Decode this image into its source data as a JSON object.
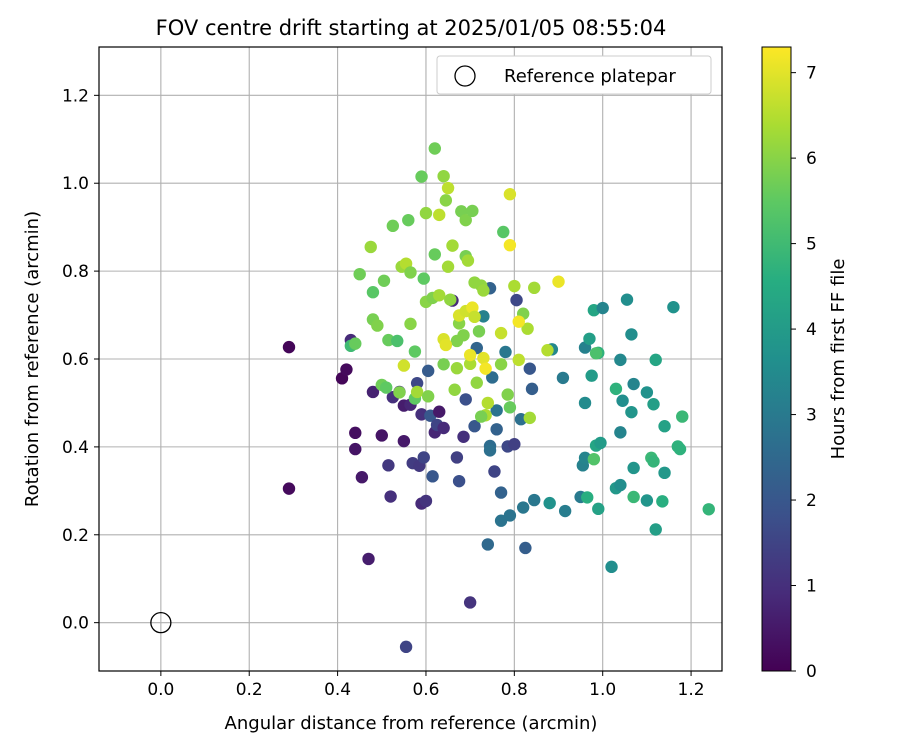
{
  "chart_data": {
    "type": "scatter",
    "title": "FOV centre drift starting at 2025/01/05 08:55:04",
    "xlabel": "Angular distance from reference (arcmin)",
    "ylabel": "Rotation from reference (arcmin)",
    "xlim": [
      -0.14,
      1.27
    ],
    "ylim": [
      -0.11,
      1.31
    ],
    "xticks": [
      0.0,
      0.2,
      0.4,
      0.6,
      0.8,
      1.0,
      1.2
    ],
    "yticks": [
      0.0,
      0.2,
      0.4,
      0.6,
      0.8,
      1.0,
      1.2
    ],
    "xtick_labels": [
      "0.0",
      "0.2",
      "0.4",
      "0.6",
      "0.8",
      "1.0",
      "1.2"
    ],
    "ytick_labels": [
      "0.0",
      "0.2",
      "0.4",
      "0.6",
      "0.8",
      "1.0",
      "1.2"
    ],
    "grid": true,
    "legend": {
      "position": "top-right",
      "label": "Reference platepar"
    },
    "reference_point": {
      "x": 0.0,
      "y": 0.0
    },
    "colorbar": {
      "label": "Hours from first FF file",
      "min": 0,
      "max": 7.3,
      "ticks": [
        0,
        1,
        2,
        3,
        4,
        5,
        6,
        7
      ],
      "tick_labels": [
        "0",
        "1",
        "2",
        "3",
        "4",
        "5",
        "6",
        "7"
      ],
      "colormap": "viridis"
    },
    "points": [
      {
        "x": 0.29,
        "y": 0.627,
        "c": 0.1
      },
      {
        "x": 0.29,
        "y": 0.305,
        "c": 0.2
      },
      {
        "x": 0.41,
        "y": 0.556,
        "c": 0.1
      },
      {
        "x": 0.42,
        "y": 0.576,
        "c": 0.2
      },
      {
        "x": 0.43,
        "y": 0.643,
        "c": 0.9
      },
      {
        "x": 0.44,
        "y": 0.432,
        "c": 0.3
      },
      {
        "x": 0.44,
        "y": 0.395,
        "c": 0.4
      },
      {
        "x": 0.455,
        "y": 0.331,
        "c": 0.5
      },
      {
        "x": 0.47,
        "y": 0.145,
        "c": 0.6
      },
      {
        "x": 0.48,
        "y": 0.525,
        "c": 0.7
      },
      {
        "x": 0.5,
        "y": 0.426,
        "c": 0.4
      },
      {
        "x": 0.515,
        "y": 0.358,
        "c": 1.2
      },
      {
        "x": 0.52,
        "y": 0.287,
        "c": 1.0
      },
      {
        "x": 0.525,
        "y": 0.513,
        "c": 1.0
      },
      {
        "x": 0.54,
        "y": 0.525,
        "c": 1.1
      },
      {
        "x": 0.55,
        "y": 0.494,
        "c": 0.6
      },
      {
        "x": 0.55,
        "y": 0.413,
        "c": 0.5
      },
      {
        "x": 0.565,
        "y": 0.496,
        "c": 0.8
      },
      {
        "x": 0.57,
        "y": 0.363,
        "c": 1.3
      },
      {
        "x": 0.58,
        "y": 0.545,
        "c": 1.6
      },
      {
        "x": 0.585,
        "y": 0.357,
        "c": 1.2
      },
      {
        "x": 0.59,
        "y": 0.474,
        "c": 1.0
      },
      {
        "x": 0.59,
        "y": 0.271,
        "c": 0.9
      },
      {
        "x": 0.595,
        "y": 0.376,
        "c": 1.5
      },
      {
        "x": 0.6,
        "y": 0.277,
        "c": 1.1
      },
      {
        "x": 0.605,
        "y": 0.573,
        "c": 2.1
      },
      {
        "x": 0.61,
        "y": 0.471,
        "c": 2.0
      },
      {
        "x": 0.615,
        "y": 0.333,
        "c": 2.0
      },
      {
        "x": 0.62,
        "y": 0.433,
        "c": 0.8
      },
      {
        "x": 0.625,
        "y": 0.45,
        "c": 1.5
      },
      {
        "x": 0.63,
        "y": 0.48,
        "c": 0.5
      },
      {
        "x": 0.64,
        "y": 0.443,
        "c": 0.9
      },
      {
        "x": 0.66,
        "y": 0.733,
        "c": 0.9
      },
      {
        "x": 0.67,
        "y": 0.376,
        "c": 1.4
      },
      {
        "x": 0.675,
        "y": 0.322,
        "c": 1.8
      },
      {
        "x": 0.685,
        "y": 0.423,
        "c": 1.0
      },
      {
        "x": 0.69,
        "y": 0.508,
        "c": 1.8
      },
      {
        "x": 0.7,
        "y": 0.046,
        "c": 1.1
      },
      {
        "x": 0.71,
        "y": 0.447,
        "c": 2.0
      },
      {
        "x": 0.555,
        "y": -0.055,
        "c": 1.5
      },
      {
        "x": 0.74,
        "y": 0.178,
        "c": 2.5
      },
      {
        "x": 0.745,
        "y": 0.402,
        "c": 2.6
      },
      {
        "x": 0.75,
        "y": 0.558,
        "c": 2.6
      },
      {
        "x": 0.755,
        "y": 0.344,
        "c": 1.5
      },
      {
        "x": 0.76,
        "y": 0.483,
        "c": 2.8
      },
      {
        "x": 0.77,
        "y": 0.296,
        "c": 2.3
      },
      {
        "x": 0.77,
        "y": 0.232,
        "c": 2.8
      },
      {
        "x": 0.78,
        "y": 0.616,
        "c": 2.9
      },
      {
        "x": 0.785,
        "y": 0.401,
        "c": 1.6
      },
      {
        "x": 0.79,
        "y": 0.244,
        "c": 2.8
      },
      {
        "x": 0.8,
        "y": 0.406,
        "c": 1.4
      },
      {
        "x": 0.805,
        "y": 0.734,
        "c": 1.6
      },
      {
        "x": 0.815,
        "y": 0.463,
        "c": 2.7
      },
      {
        "x": 0.82,
        "y": 0.262,
        "c": 2.9
      },
      {
        "x": 0.825,
        "y": 0.17,
        "c": 2.2
      },
      {
        "x": 0.835,
        "y": 0.578,
        "c": 2.0
      },
      {
        "x": 0.84,
        "y": 0.532,
        "c": 2.2
      },
      {
        "x": 0.845,
        "y": 0.279,
        "c": 2.9
      },
      {
        "x": 0.745,
        "y": 0.761,
        "c": 2.3
      },
      {
        "x": 0.745,
        "y": 0.392,
        "c": 2.7
      },
      {
        "x": 0.73,
        "y": 0.697,
        "c": 3.2
      },
      {
        "x": 0.715,
        "y": 0.625,
        "c": 2.4
      },
      {
        "x": 0.76,
        "y": 0.44,
        "c": 2.3
      },
      {
        "x": 0.88,
        "y": 0.272,
        "c": 3.7
      },
      {
        "x": 0.885,
        "y": 0.622,
        "c": 3.4
      },
      {
        "x": 0.91,
        "y": 0.557,
        "c": 3.0
      },
      {
        "x": 0.915,
        "y": 0.254,
        "c": 3.1
      },
      {
        "x": 0.95,
        "y": 0.286,
        "c": 3.0
      },
      {
        "x": 0.955,
        "y": 0.358,
        "c": 3.2
      },
      {
        "x": 0.96,
        "y": 0.375,
        "c": 3.3
      },
      {
        "x": 0.96,
        "y": 0.626,
        "c": 3.2
      },
      {
        "x": 0.96,
        "y": 0.5,
        "c": 3.5
      },
      {
        "x": 0.97,
        "y": 0.646,
        "c": 4.1
      },
      {
        "x": 0.975,
        "y": 0.562,
        "c": 4.0
      },
      {
        "x": 0.98,
        "y": 0.711,
        "c": 4.3
      },
      {
        "x": 0.985,
        "y": 0.403,
        "c": 4.3
      },
      {
        "x": 0.99,
        "y": 0.614,
        "c": 4.7
      },
      {
        "x": 0.99,
        "y": 0.259,
        "c": 4.2
      },
      {
        "x": 0.995,
        "y": 0.409,
        "c": 4.0
      },
      {
        "x": 1.0,
        "y": 0.716,
        "c": 3.3
      },
      {
        "x": 1.02,
        "y": 0.127,
        "c": 3.6
      },
      {
        "x": 1.03,
        "y": 0.306,
        "c": 3.9
      },
      {
        "x": 1.03,
        "y": 0.532,
        "c": 4.7
      },
      {
        "x": 1.04,
        "y": 0.598,
        "c": 3.4
      },
      {
        "x": 1.04,
        "y": 0.313,
        "c": 3.6
      },
      {
        "x": 1.04,
        "y": 0.433,
        "c": 3.3
      },
      {
        "x": 1.045,
        "y": 0.505,
        "c": 3.6
      },
      {
        "x": 1.055,
        "y": 0.735,
        "c": 3.6
      },
      {
        "x": 1.065,
        "y": 0.479,
        "c": 3.8
      },
      {
        "x": 1.065,
        "y": 0.656,
        "c": 3.6
      },
      {
        "x": 1.07,
        "y": 0.543,
        "c": 3.3
      },
      {
        "x": 1.07,
        "y": 0.352,
        "c": 3.8
      },
      {
        "x": 1.07,
        "y": 0.286,
        "c": 4.9
      },
      {
        "x": 1.1,
        "y": 0.524,
        "c": 3.7
      },
      {
        "x": 1.1,
        "y": 0.278,
        "c": 3.8
      },
      {
        "x": 1.11,
        "y": 0.375,
        "c": 4.9
      },
      {
        "x": 1.115,
        "y": 0.367,
        "c": 4.8
      },
      {
        "x": 1.115,
        "y": 0.497,
        "c": 4.1
      },
      {
        "x": 1.12,
        "y": 0.212,
        "c": 4.1
      },
      {
        "x": 1.12,
        "y": 0.598,
        "c": 4.3
      },
      {
        "x": 1.135,
        "y": 0.276,
        "c": 4.6
      },
      {
        "x": 1.14,
        "y": 0.341,
        "c": 3.9
      },
      {
        "x": 1.14,
        "y": 0.447,
        "c": 4.2
      },
      {
        "x": 1.16,
        "y": 0.718,
        "c": 3.7
      },
      {
        "x": 1.17,
        "y": 0.401,
        "c": 4.7
      },
      {
        "x": 1.175,
        "y": 0.395,
        "c": 4.7
      },
      {
        "x": 1.18,
        "y": 0.469,
        "c": 4.9
      },
      {
        "x": 1.24,
        "y": 0.258,
        "c": 4.8
      },
      {
        "x": 0.98,
        "y": 0.372,
        "c": 5.3
      },
      {
        "x": 0.965,
        "y": 0.285,
        "c": 4.6
      },
      {
        "x": 0.43,
        "y": 0.63,
        "c": 5.0
      },
      {
        "x": 0.44,
        "y": 0.635,
        "c": 5.6
      },
      {
        "x": 0.45,
        "y": 0.793,
        "c": 5.7
      },
      {
        "x": 0.475,
        "y": 0.855,
        "c": 6.2
      },
      {
        "x": 0.48,
        "y": 0.752,
        "c": 5.4
      },
      {
        "x": 0.48,
        "y": 0.69,
        "c": 5.8
      },
      {
        "x": 0.49,
        "y": 0.676,
        "c": 5.9
      },
      {
        "x": 0.5,
        "y": 0.541,
        "c": 5.7
      },
      {
        "x": 0.505,
        "y": 0.778,
        "c": 5.7
      },
      {
        "x": 0.51,
        "y": 0.535,
        "c": 5.5
      },
      {
        "x": 0.515,
        "y": 0.643,
        "c": 5.6
      },
      {
        "x": 0.525,
        "y": 0.903,
        "c": 5.7
      },
      {
        "x": 0.535,
        "y": 0.641,
        "c": 5.2
      },
      {
        "x": 0.54,
        "y": 0.524,
        "c": 5.9
      },
      {
        "x": 0.545,
        "y": 0.81,
        "c": 6.2
      },
      {
        "x": 0.555,
        "y": 0.817,
        "c": 6.5
      },
      {
        "x": 0.56,
        "y": 0.916,
        "c": 5.6
      },
      {
        "x": 0.565,
        "y": 0.68,
        "c": 6.0
      },
      {
        "x": 0.565,
        "y": 0.797,
        "c": 5.9
      },
      {
        "x": 0.575,
        "y": 0.51,
        "c": 5.5
      },
      {
        "x": 0.575,
        "y": 0.617,
        "c": 5.5
      },
      {
        "x": 0.58,
        "y": 0.525,
        "c": 6.3
      },
      {
        "x": 0.59,
        "y": 1.015,
        "c": 5.6
      },
      {
        "x": 0.595,
        "y": 0.783,
        "c": 5.5
      },
      {
        "x": 0.6,
        "y": 0.932,
        "c": 6.1
      },
      {
        "x": 0.6,
        "y": 0.73,
        "c": 6.0
      },
      {
        "x": 0.605,
        "y": 0.515,
        "c": 5.9
      },
      {
        "x": 0.615,
        "y": 0.739,
        "c": 5.9
      },
      {
        "x": 0.62,
        "y": 1.079,
        "c": 5.7
      },
      {
        "x": 0.62,
        "y": 0.838,
        "c": 5.6
      },
      {
        "x": 0.63,
        "y": 0.745,
        "c": 6.3
      },
      {
        "x": 0.64,
        "y": 0.588,
        "c": 5.8
      },
      {
        "x": 0.64,
        "y": 1.016,
        "c": 6.1
      },
      {
        "x": 0.645,
        "y": 0.961,
        "c": 6.0
      },
      {
        "x": 0.65,
        "y": 0.989,
        "c": 6.6
      },
      {
        "x": 0.65,
        "y": 0.81,
        "c": 6.3
      },
      {
        "x": 0.655,
        "y": 0.735,
        "c": 6.1
      },
      {
        "x": 0.66,
        "y": 0.858,
        "c": 6.3
      },
      {
        "x": 0.665,
        "y": 0.53,
        "c": 6.1
      },
      {
        "x": 0.67,
        "y": 0.579,
        "c": 6.2
      },
      {
        "x": 0.67,
        "y": 0.641,
        "c": 5.9
      },
      {
        "x": 0.675,
        "y": 0.681,
        "c": 6.0
      },
      {
        "x": 0.68,
        "y": 0.936,
        "c": 5.8
      },
      {
        "x": 0.685,
        "y": 0.654,
        "c": 5.9
      },
      {
        "x": 0.69,
        "y": 0.834,
        "c": 5.8
      },
      {
        "x": 0.69,
        "y": 0.916,
        "c": 5.9
      },
      {
        "x": 0.695,
        "y": 0.824,
        "c": 6.3
      },
      {
        "x": 0.7,
        "y": 0.589,
        "c": 6.4
      },
      {
        "x": 0.705,
        "y": 0.937,
        "c": 5.8
      },
      {
        "x": 0.71,
        "y": 0.774,
        "c": 6.1
      },
      {
        "x": 0.72,
        "y": 0.663,
        "c": 5.8
      },
      {
        "x": 0.725,
        "y": 0.767,
        "c": 6.1
      },
      {
        "x": 0.73,
        "y": 0.756,
        "c": 6.2
      },
      {
        "x": 0.735,
        "y": 0.472,
        "c": 6.4
      },
      {
        "x": 0.74,
        "y": 0.5,
        "c": 6.5
      },
      {
        "x": 0.715,
        "y": 0.546,
        "c": 6.1
      },
      {
        "x": 0.725,
        "y": 0.469,
        "c": 5.8
      },
      {
        "x": 0.77,
        "y": 0.588,
        "c": 6.0
      },
      {
        "x": 0.785,
        "y": 0.519,
        "c": 5.9
      },
      {
        "x": 0.775,
        "y": 0.889,
        "c": 5.4
      },
      {
        "x": 0.79,
        "y": 0.49,
        "c": 5.6
      },
      {
        "x": 0.8,
        "y": 0.766,
        "c": 6.4
      },
      {
        "x": 0.81,
        "y": 0.598,
        "c": 6.6
      },
      {
        "x": 0.82,
        "y": 0.703,
        "c": 5.9
      },
      {
        "x": 0.83,
        "y": 0.669,
        "c": 6.4
      },
      {
        "x": 0.835,
        "y": 0.466,
        "c": 6.3
      },
      {
        "x": 0.845,
        "y": 0.762,
        "c": 6.3
      },
      {
        "x": 0.875,
        "y": 0.62,
        "c": 6.5
      },
      {
        "x": 0.985,
        "y": 0.613,
        "c": 5.2
      },
      {
        "x": 0.63,
        "y": 0.928,
        "c": 6.6
      },
      {
        "x": 0.64,
        "y": 0.645,
        "c": 6.9
      },
      {
        "x": 0.645,
        "y": 0.632,
        "c": 7.0
      },
      {
        "x": 0.675,
        "y": 0.699,
        "c": 6.9
      },
      {
        "x": 0.69,
        "y": 0.709,
        "c": 6.8
      },
      {
        "x": 0.7,
        "y": 0.609,
        "c": 7.1
      },
      {
        "x": 0.705,
        "y": 0.717,
        "c": 7.1
      },
      {
        "x": 0.71,
        "y": 0.696,
        "c": 6.7
      },
      {
        "x": 0.73,
        "y": 0.602,
        "c": 7.0
      },
      {
        "x": 0.735,
        "y": 0.578,
        "c": 7.2
      },
      {
        "x": 0.77,
        "y": 0.659,
        "c": 6.7
      },
      {
        "x": 0.79,
        "y": 0.975,
        "c": 6.9
      },
      {
        "x": 0.79,
        "y": 0.859,
        "c": 7.2
      },
      {
        "x": 0.81,
        "y": 0.685,
        "c": 7.2
      },
      {
        "x": 0.9,
        "y": 0.776,
        "c": 7.1
      },
      {
        "x": 0.55,
        "y": 0.585,
        "c": 6.8
      }
    ]
  }
}
